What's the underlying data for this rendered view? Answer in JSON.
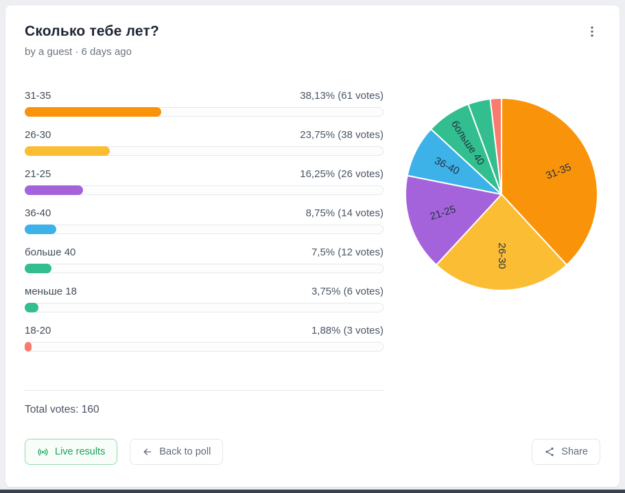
{
  "poll": {
    "title": "Сколько тебе лет?",
    "byline": "by a guest · 6 days ago",
    "total_label": "Total votes: 160",
    "results": [
      {
        "label": "31-35",
        "percent_label": "38,13% (61 votes)",
        "percent": 38.13,
        "votes": 61,
        "color": "#F9940A",
        "pie_label": true
      },
      {
        "label": "26-30",
        "percent_label": "23,75% (38 votes)",
        "percent": 23.75,
        "votes": 38,
        "color": "#FBBD34",
        "pie_label": true
      },
      {
        "label": "21-25",
        "percent_label": "16,25% (26 votes)",
        "percent": 16.25,
        "votes": 26,
        "color": "#A563DB",
        "pie_label": true
      },
      {
        "label": "36-40",
        "percent_label": "8,75% (14 votes)",
        "percent": 8.75,
        "votes": 14,
        "color": "#3DB2E8",
        "pie_label": true
      },
      {
        "label": "больше 40",
        "percent_label": "7,5% (12 votes)",
        "percent": 7.5,
        "votes": 12,
        "color": "#32BE8E",
        "pie_label": true
      },
      {
        "label": "меньше 18",
        "percent_label": "3,75% (6 votes)",
        "percent": 3.75,
        "votes": 6,
        "color": "#32BE8E",
        "pie_label": false
      },
      {
        "label": "18-20",
        "percent_label": "1,88% (3 votes)",
        "percent": 1.88,
        "votes": 3,
        "color": "#F97A6E",
        "pie_label": false
      }
    ]
  },
  "buttons": {
    "live_results": "Live results",
    "back_to_poll": "Back to poll",
    "share": "Share"
  },
  "chart_data": [
    {
      "type": "bar",
      "orientation": "horizontal",
      "title": "Сколько тебе лет?",
      "categories": [
        "31-35",
        "26-30",
        "21-25",
        "36-40",
        "больше 40",
        "меньше 18",
        "18-20"
      ],
      "values": [
        38.13,
        23.75,
        16.25,
        8.75,
        7.5,
        3.75,
        1.88
      ],
      "votes": [
        61,
        38,
        26,
        14,
        12,
        6,
        3
      ],
      "value_labels": [
        "38,13% (61 votes)",
        "23,75% (38 votes)",
        "16,25% (26 votes)",
        "8,75% (14 votes)",
        "7,5% (12 votes)",
        "3,75% (6 votes)",
        "1,88% (3 votes)"
      ],
      "xlim": [
        0,
        100
      ],
      "total_votes": 160,
      "colors": [
        "#F9940A",
        "#FBBD34",
        "#A563DB",
        "#3DB2E8",
        "#32BE8E",
        "#32BE8E",
        "#F97A6E"
      ]
    },
    {
      "type": "pie",
      "labels": [
        "31-35",
        "26-30",
        "21-25",
        "36-40",
        "больше 40",
        "меньше 18",
        "18-20"
      ],
      "values": [
        38.13,
        23.75,
        16.25,
        8.75,
        7.5,
        3.75,
        1.88
      ],
      "colors": [
        "#F9940A",
        "#FBBD34",
        "#A563DB",
        "#3DB2E8",
        "#32BE8E",
        "#32BE8E",
        "#F97A6E"
      ],
      "start_angle_deg": 0,
      "direction": "clockwise",
      "labels_shown_on_slices": [
        "31-35",
        "26-30",
        "21-25",
        "36-40",
        "больше 40"
      ]
    }
  ]
}
